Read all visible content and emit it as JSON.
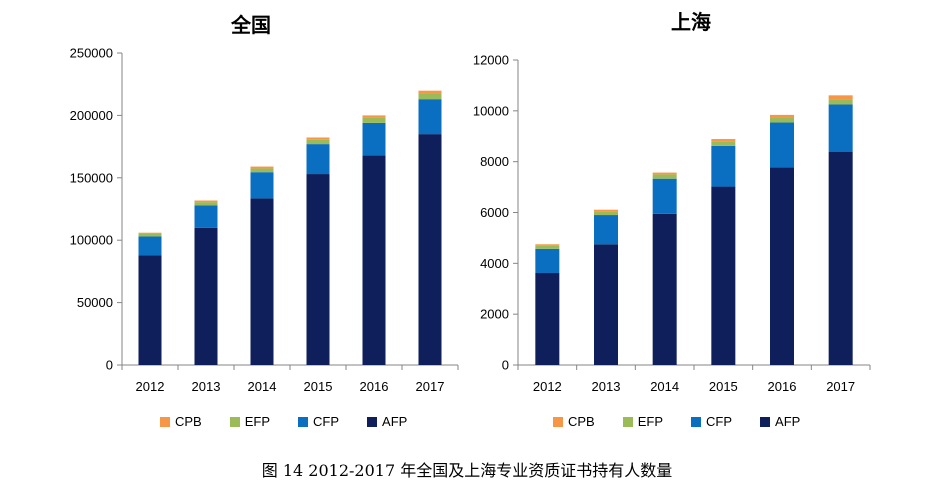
{
  "colors": {
    "AFP": "#0e1f5b",
    "CFP": "#0b6fc1",
    "EFP": "#9bbb59",
    "CPB": "#f79646",
    "axis": "#868686"
  },
  "caption": "图 14    2012-2017 年全国及上海专业资质证书持有人数量",
  "legend": [
    "CPB",
    "EFP",
    "CFP",
    "AFP"
  ],
  "chart_data": [
    {
      "type": "bar",
      "stacked": true,
      "title": "全国",
      "categories": [
        "2012",
        "2013",
        "2014",
        "2015",
        "2016",
        "2017"
      ],
      "ylim": [
        0,
        250000
      ],
      "yticks": [
        "0",
        "50000",
        "100000",
        "150000",
        "200000",
        "250000"
      ],
      "grid": false,
      "legend_position": "bottom",
      "series": [
        {
          "name": "AFP",
          "values": [
            88000,
            110000,
            133500,
            153000,
            168000,
            185000
          ]
        },
        {
          "name": "CFP",
          "values": [
            15000,
            18000,
            21000,
            24000,
            26000,
            28000
          ]
        },
        {
          "name": "EFP",
          "values": [
            2000,
            2500,
            3000,
            3500,
            4000,
            4500
          ]
        },
        {
          "name": "CPB",
          "values": [
            1000,
            1300,
            1500,
            1800,
            2000,
            2300
          ]
        }
      ]
    },
    {
      "type": "bar",
      "stacked": true,
      "title": "上海",
      "categories": [
        "2012",
        "2013",
        "2014",
        "2015",
        "2016",
        "2017"
      ],
      "ylim": [
        0,
        12000
      ],
      "yticks": [
        "0",
        "2000",
        "4000",
        "6000",
        "8000",
        "10000",
        "12000"
      ],
      "grid": false,
      "legend_position": "bottom",
      "series": [
        {
          "name": "AFP",
          "values": [
            3620,
            4750,
            5950,
            7020,
            7780,
            8380
          ]
        },
        {
          "name": "CFP",
          "values": [
            950,
            1150,
            1380,
            1600,
            1760,
            1870
          ]
        },
        {
          "name": "EFP",
          "values": [
            140,
            150,
            170,
            180,
            200,
            210
          ]
        },
        {
          "name": "CPB",
          "values": [
            40,
            60,
            70,
            90,
            100,
            150
          ]
        }
      ]
    }
  ]
}
